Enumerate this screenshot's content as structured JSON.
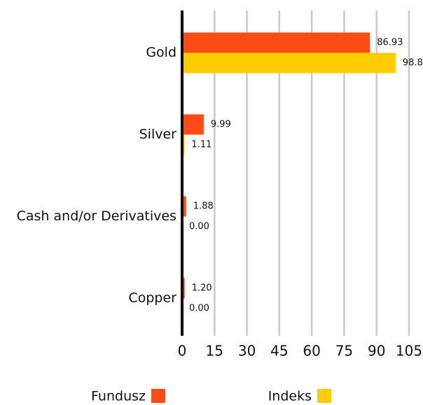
{
  "chart_data": {
    "type": "bar",
    "orientation": "horizontal",
    "categories": [
      "Gold",
      "Silver",
      "Cash and/or Derivatives",
      "Copper"
    ],
    "series": [
      {
        "name": "Fundusz",
        "color": "#fc4c14",
        "values": [
          86.93,
          9.99,
          1.88,
          1.2
        ],
        "value_labels": [
          "86.93",
          "9.99",
          "1.88",
          "1.20"
        ]
      },
      {
        "name": "Indeks",
        "color": "#ffcc00",
        "values": [
          98.8,
          1.11,
          0,
          0
        ],
        "value_labels": [
          "98.8",
          "1.11",
          "0.00",
          "0.00"
        ]
      }
    ],
    "xlim": [
      0,
      105
    ],
    "xticks": [
      0,
      15,
      30,
      45,
      60,
      75,
      90,
      105
    ],
    "grid": true
  }
}
